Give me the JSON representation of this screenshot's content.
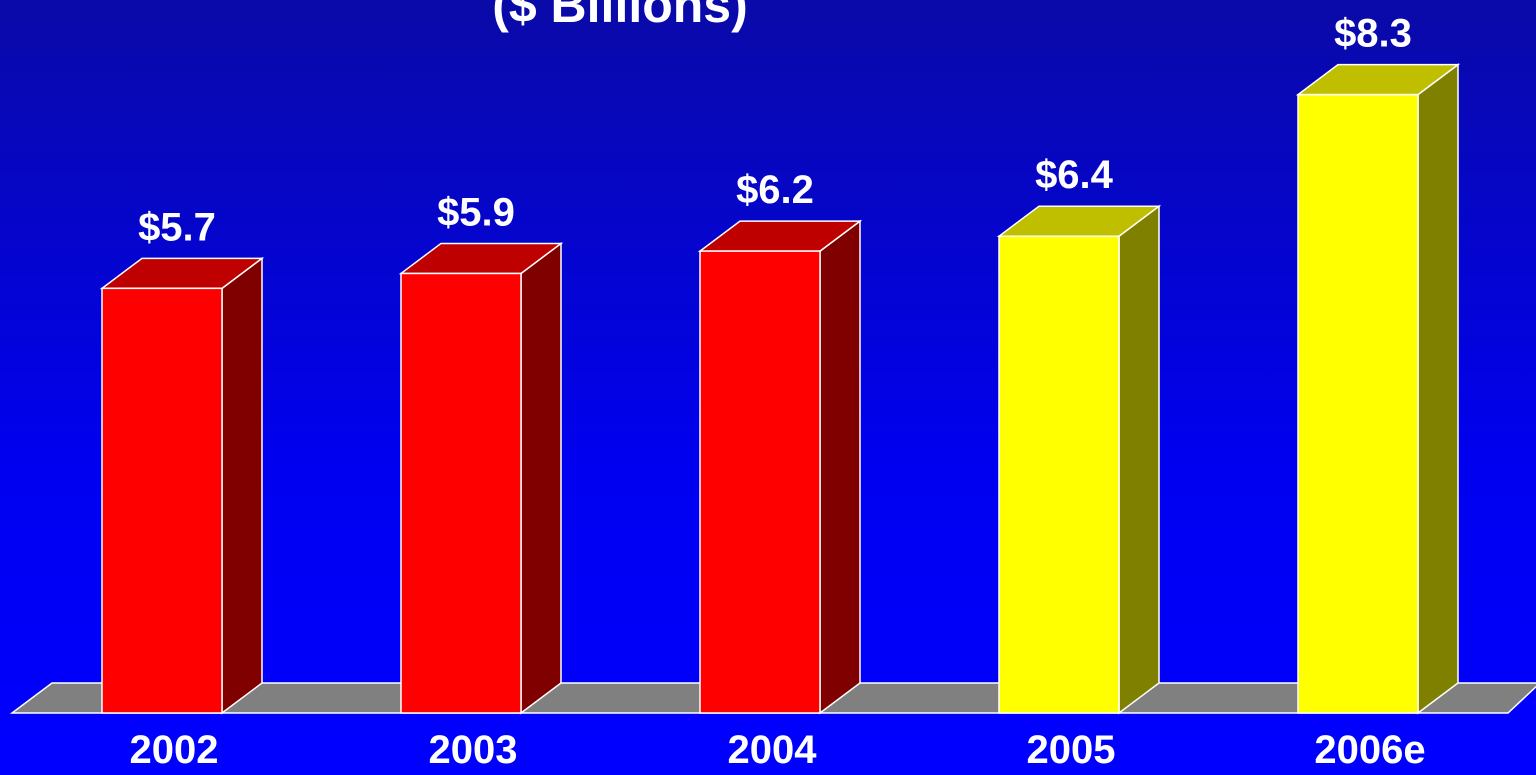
{
  "chart_data": {
    "type": "bar3d",
    "subtitle": "($ Billions)",
    "categories": [
      "2002",
      "2003",
      "2004",
      "2005",
      "2006e"
    ],
    "values": [
      5.7,
      5.9,
      6.2,
      6.4,
      8.3
    ],
    "value_labels": [
      "$5.7",
      "$5.9",
      "$6.2",
      "$6.4",
      "$8.3"
    ],
    "colors": [
      "#ff0000",
      "#ff0000",
      "#ff0000",
      "#ffff00",
      "#ffff00"
    ]
  }
}
